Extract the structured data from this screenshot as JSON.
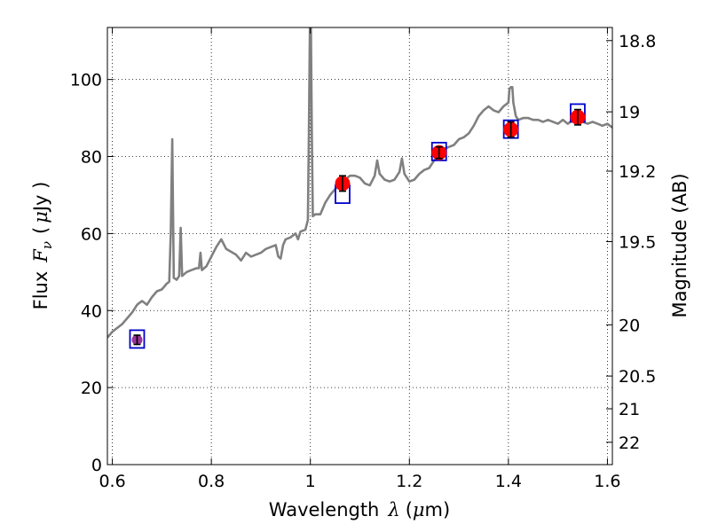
{
  "chart_data": {
    "type": "line",
    "title": "",
    "xlabel": {
      "prefix": "Wavelength",
      "symbol": "λ",
      "unit_open": "(",
      "unit_mu": "μ",
      "unit_rest": "m)"
    },
    "ylabel": {
      "prefix": "Flux",
      "symbol": "F",
      "subscript": "ν",
      "unit_open": "(",
      "unit_mu": "μ",
      "unit_rest": "Jy )"
    },
    "y2label": "Magnitude (AB)",
    "xlim": [
      0.59,
      1.61
    ],
    "ylim": [
      0,
      113.5
    ],
    "grid": true,
    "x_ticks": [
      0.6,
      0.8,
      1.0,
      1.2,
      1.4,
      1.6
    ],
    "x_tick_labels": [
      "0.6",
      "0.8",
      "1",
      "1.2",
      "1.4",
      "1.6"
    ],
    "y_ticks": [
      0,
      20,
      40,
      60,
      80,
      100
    ],
    "y_tick_labels": [
      "0",
      "20",
      "40",
      "60",
      "80",
      "100"
    ],
    "y2_ticks": [
      {
        "label": "18.8",
        "flux": 110.1
      },
      {
        "label": "19",
        "flux": 91.6
      },
      {
        "label": "19.2",
        "flux": 76.2
      },
      {
        "label": "19.5",
        "flux": 57.9
      },
      {
        "label": "20",
        "flux": 36.3
      },
      {
        "label": "20.5",
        "flux": 23.0
      },
      {
        "label": "21",
        "flux": 14.5
      },
      {
        "label": "22",
        "flux": 5.8
      }
    ],
    "series": [
      {
        "kind": "spectrum",
        "color": "#808080",
        "points": [
          [
            0.59,
            33
          ],
          [
            0.6,
            34.5
          ],
          [
            0.62,
            36.5
          ],
          [
            0.64,
            39.5
          ],
          [
            0.65,
            41.5
          ],
          [
            0.66,
            42.5
          ],
          [
            0.67,
            41.5
          ],
          [
            0.68,
            43.5
          ],
          [
            0.69,
            45
          ],
          [
            0.7,
            45.5
          ],
          [
            0.71,
            47
          ],
          [
            0.715,
            47.5
          ],
          [
            0.718,
            60
          ],
          [
            0.721,
            84.5
          ],
          [
            0.724,
            48.5
          ],
          [
            0.73,
            48
          ],
          [
            0.735,
            49
          ],
          [
            0.738,
            61.5
          ],
          [
            0.741,
            49
          ],
          [
            0.75,
            50
          ],
          [
            0.76,
            50.5
          ],
          [
            0.77,
            51
          ],
          [
            0.775,
            51
          ],
          [
            0.778,
            55
          ],
          [
            0.781,
            50.5
          ],
          [
            0.79,
            51.5
          ],
          [
            0.8,
            54
          ],
          [
            0.81,
            56.5
          ],
          [
            0.82,
            58.5
          ],
          [
            0.83,
            56
          ],
          [
            0.85,
            54.5
          ],
          [
            0.86,
            53
          ],
          [
            0.87,
            55
          ],
          [
            0.88,
            54
          ],
          [
            0.9,
            55
          ],
          [
            0.91,
            56
          ],
          [
            0.92,
            56.5
          ],
          [
            0.93,
            57
          ],
          [
            0.935,
            54
          ],
          [
            0.94,
            53.5
          ],
          [
            0.945,
            57
          ],
          [
            0.95,
            58.5
          ],
          [
            0.96,
            59
          ],
          [
            0.97,
            60
          ],
          [
            0.975,
            58.5
          ],
          [
            0.98,
            60.5
          ],
          [
            0.99,
            61
          ],
          [
            0.995,
            63.5
          ],
          [
            0.997,
            85
          ],
          [
            0.999,
            114
          ],
          [
            1.001,
            114
          ],
          [
            1.003,
            85
          ],
          [
            1.005,
            64.5
          ],
          [
            1.01,
            65
          ],
          [
            1.02,
            65
          ],
          [
            1.03,
            68
          ],
          [
            1.04,
            70
          ],
          [
            1.05,
            71.5
          ],
          [
            1.06,
            73
          ],
          [
            1.07,
            74
          ],
          [
            1.08,
            75
          ],
          [
            1.09,
            75
          ],
          [
            1.1,
            74.5
          ],
          [
            1.11,
            73
          ],
          [
            1.12,
            72.5
          ],
          [
            1.13,
            75
          ],
          [
            1.135,
            79
          ],
          [
            1.14,
            75.5
          ],
          [
            1.15,
            74
          ],
          [
            1.16,
            73.5
          ],
          [
            1.17,
            74
          ],
          [
            1.18,
            76
          ],
          [
            1.185,
            79.5
          ],
          [
            1.19,
            75.5
          ],
          [
            1.2,
            73.5
          ],
          [
            1.21,
            74
          ],
          [
            1.22,
            75.5
          ],
          [
            1.23,
            76.5
          ],
          [
            1.24,
            77
          ],
          [
            1.25,
            79
          ],
          [
            1.26,
            80.5
          ],
          [
            1.27,
            82
          ],
          [
            1.28,
            82.5
          ],
          [
            1.29,
            83
          ],
          [
            1.3,
            84.5
          ],
          [
            1.31,
            85
          ],
          [
            1.32,
            86
          ],
          [
            1.33,
            88
          ],
          [
            1.34,
            90.5
          ],
          [
            1.35,
            92
          ],
          [
            1.36,
            93
          ],
          [
            1.37,
            92
          ],
          [
            1.38,
            91.5
          ],
          [
            1.39,
            93
          ],
          [
            1.4,
            94
          ],
          [
            1.402,
            97.5
          ],
          [
            1.405,
            98
          ],
          [
            1.408,
            98
          ],
          [
            1.41,
            94
          ],
          [
            1.415,
            90.5
          ],
          [
            1.42,
            89.5
          ],
          [
            1.43,
            90
          ],
          [
            1.44,
            90
          ],
          [
            1.45,
            89.5
          ],
          [
            1.46,
            89.5
          ],
          [
            1.47,
            89
          ],
          [
            1.48,
            89.5
          ],
          [
            1.49,
            89
          ],
          [
            1.5,
            88.5
          ],
          [
            1.51,
            89.5
          ],
          [
            1.52,
            88.5
          ],
          [
            1.53,
            89.5
          ],
          [
            1.54,
            90
          ],
          [
            1.55,
            89
          ],
          [
            1.56,
            88.5
          ],
          [
            1.57,
            89
          ],
          [
            1.58,
            88.5
          ],
          [
            1.59,
            88
          ],
          [
            1.6,
            88.5
          ],
          [
            1.61,
            87.5
          ]
        ]
      },
      {
        "kind": "model",
        "color": "#0000cc",
        "marker": "square",
        "points": [
          [
            0.65,
            32.6
          ],
          [
            1.065,
            70.2
          ],
          [
            1.26,
            81.3
          ],
          [
            1.405,
            87.1
          ],
          [
            1.54,
            91.3
          ]
        ]
      },
      {
        "kind": "photometry",
        "color": "#ff0000",
        "first_color": "#993399",
        "marker": "circle",
        "points": [
          {
            "x": 0.65,
            "y": 32.4,
            "yerr": 1.2
          },
          {
            "x": 1.065,
            "y": 73.0,
            "yerr": 2.0
          },
          {
            "x": 1.26,
            "y": 81.0,
            "yerr": 1.5
          },
          {
            "x": 1.405,
            "y": 87.0,
            "yerr": 2.0
          },
          {
            "x": 1.54,
            "y": 90.2,
            "yerr": 2.0
          }
        ]
      }
    ]
  }
}
